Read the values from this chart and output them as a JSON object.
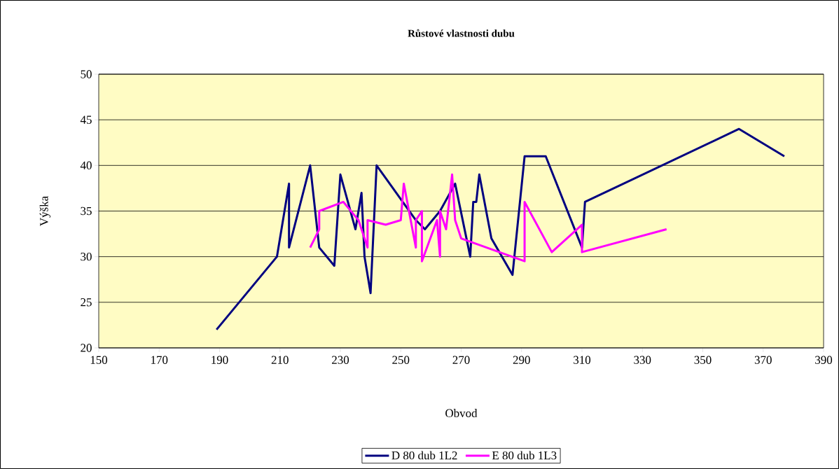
{
  "chart_data": {
    "type": "line",
    "title": "Růstové vlastnosti dubu",
    "xlabel": "Obvod",
    "ylabel": "Výška",
    "xlim": [
      150,
      390
    ],
    "xticks": [
      150,
      170,
      190,
      210,
      230,
      250,
      270,
      290,
      310,
      330,
      350,
      370,
      390
    ],
    "ylim": [
      20,
      50
    ],
    "yticks": [
      20,
      25,
      30,
      35,
      40,
      45,
      50
    ],
    "grid": "y",
    "legend": "bottom",
    "marker": "none",
    "line_style": "solid",
    "series": [
      {
        "name": "D 80 dub 1L2",
        "color": "#000080",
        "x": [
          189,
          209,
          213,
          213,
          220,
          223,
          228,
          230,
          235,
          237,
          238,
          240,
          242,
          255,
          258,
          263,
          268,
          273,
          274,
          275,
          276,
          280,
          287,
          291,
          298,
          310,
          311,
          362,
          377
        ],
        "values": [
          22,
          30,
          38,
          31,
          40,
          31,
          29,
          39,
          33,
          37,
          30,
          26,
          40,
          34,
          33,
          35,
          38,
          30,
          36,
          36,
          39,
          32,
          28,
          41,
          41,
          31,
          36,
          44,
          41
        ]
      },
      {
        "name": "E 80 dub 1L3",
        "color": "#ff00ff",
        "x": [
          220,
          223,
          223,
          231,
          236,
          239,
          239,
          245,
          250,
          251,
          255,
          255,
          257,
          257,
          262,
          263,
          263,
          265,
          267,
          268,
          270,
          291,
          291,
          300,
          310,
          310,
          338
        ],
        "values": [
          31,
          33,
          35,
          36,
          34,
          31,
          34,
          33.5,
          34,
          38,
          31,
          34,
          35,
          29.5,
          34,
          30,
          35,
          33,
          39,
          34,
          32,
          29.5,
          36,
          30.5,
          33.5,
          30.5,
          33
        ]
      }
    ]
  }
}
